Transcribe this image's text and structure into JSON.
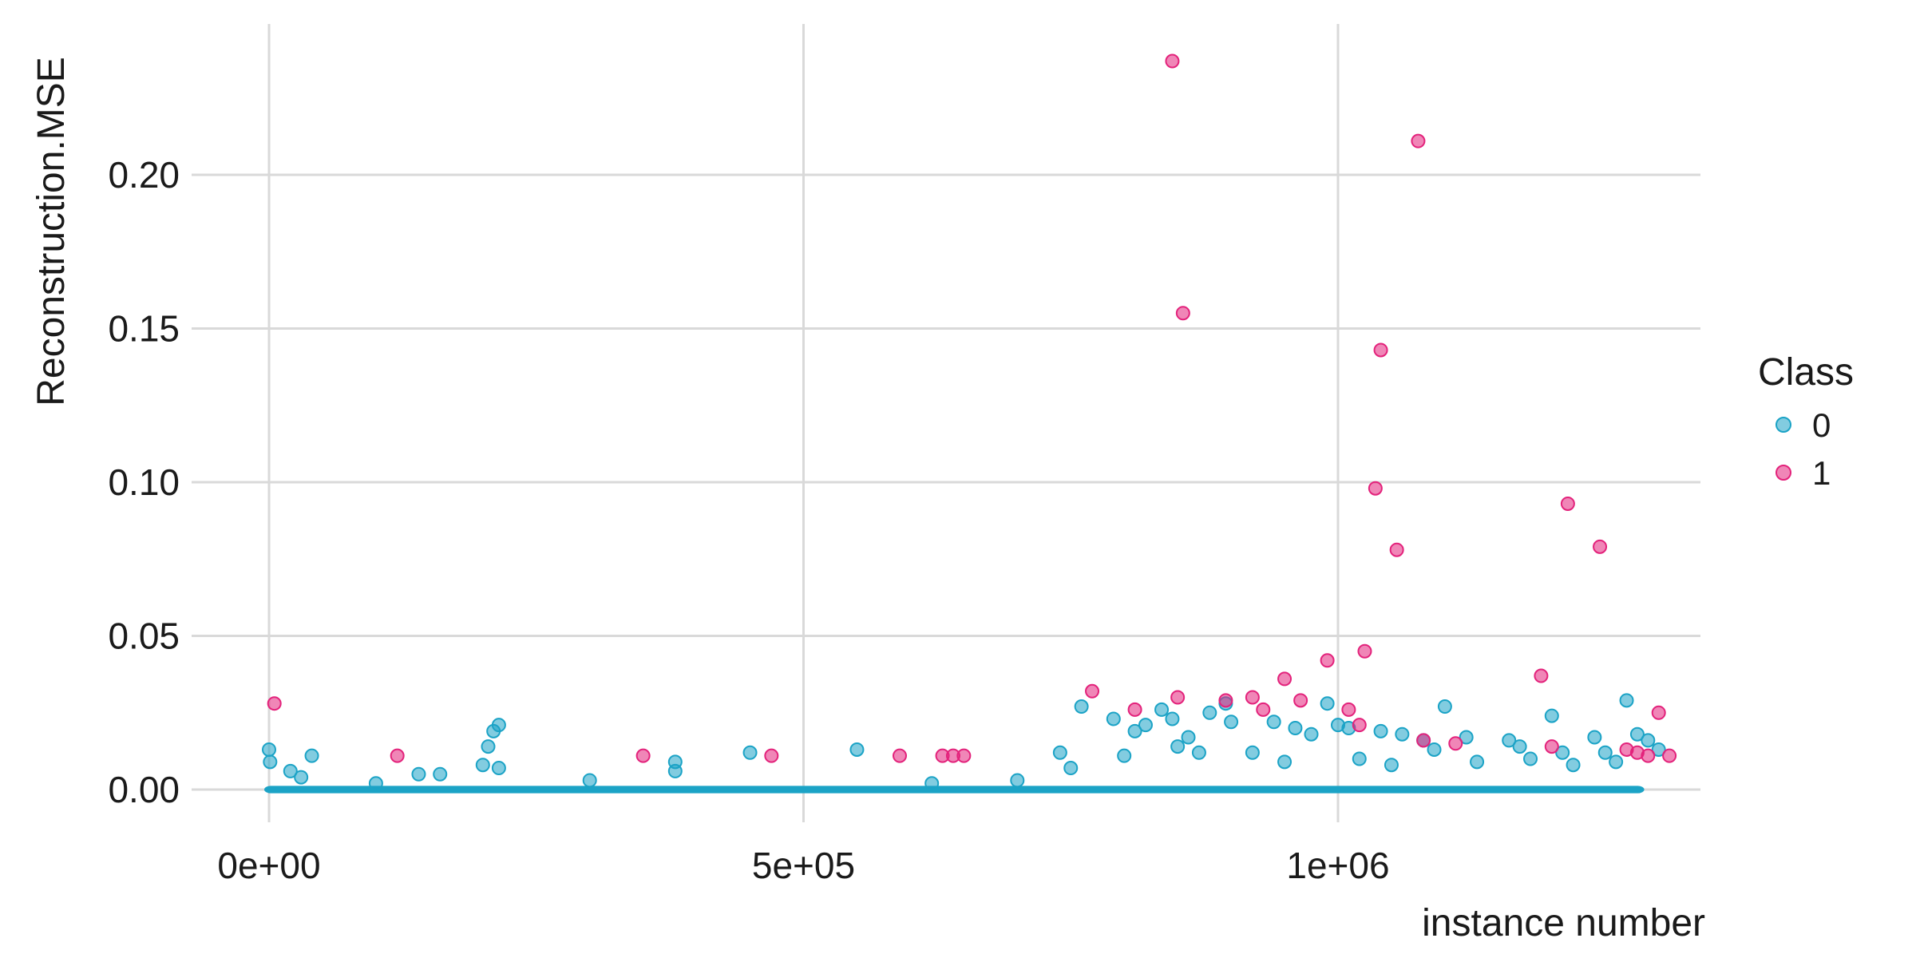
{
  "chart_data": {
    "type": "scatter",
    "xlabel": "instance number",
    "ylabel": "Reconstruction.MSE",
    "xlim": [
      -140000,
      1340000
    ],
    "ylim": [
      -0.012,
      0.25
    ],
    "x_ticks": [
      0,
      500000,
      1000000
    ],
    "x_tick_labels": [
      "0e+00",
      "5e+05",
      "1e+06"
    ],
    "y_ticks": [
      0,
      0.05,
      0.1,
      0.15,
      0.2
    ],
    "y_tick_labels": [
      "0.00",
      "0.05",
      "0.10",
      "0.15",
      "0.20"
    ],
    "grid": true,
    "legend": {
      "title": "Class",
      "position": "right"
    },
    "series": [
      {
        "name": "0",
        "color": "#1ba3c6",
        "points": [
          [
            0,
            0.013
          ],
          [
            1000,
            0.009
          ],
          [
            20000,
            0.006
          ],
          [
            40000,
            0.011
          ],
          [
            140000,
            0.005
          ],
          [
            160000,
            0.005
          ],
          [
            200000,
            0.008
          ],
          [
            205000,
            0.014
          ],
          [
            210000,
            0.019
          ],
          [
            215000,
            0.021
          ],
          [
            215000,
            0.007
          ],
          [
            380000,
            0.009
          ],
          [
            380000,
            0.006
          ],
          [
            450000,
            0.012
          ],
          [
            550000,
            0.013
          ],
          [
            760000,
            0.027
          ],
          [
            790000,
            0.023
          ],
          [
            810000,
            0.019
          ],
          [
            820000,
            0.021
          ],
          [
            835000,
            0.026
          ],
          [
            845000,
            0.023
          ],
          [
            860000,
            0.017
          ],
          [
            880000,
            0.025
          ],
          [
            895000,
            0.028
          ],
          [
            900000,
            0.022
          ],
          [
            940000,
            0.022
          ],
          [
            960000,
            0.02
          ],
          [
            975000,
            0.018
          ],
          [
            990000,
            0.028
          ],
          [
            1000000,
            0.021
          ],
          [
            1010000,
            0.02
          ],
          [
            1040000,
            0.019
          ],
          [
            1060000,
            0.018
          ],
          [
            1080000,
            0.016
          ],
          [
            1100000,
            0.027
          ],
          [
            1120000,
            0.017
          ],
          [
            1160000,
            0.016
          ],
          [
            1170000,
            0.014
          ],
          [
            1200000,
            0.024
          ],
          [
            1210000,
            0.012
          ],
          [
            1240000,
            0.017
          ],
          [
            1270000,
            0.029
          ],
          [
            1280000,
            0.018
          ],
          [
            1290000,
            0.016
          ],
          [
            1300000,
            0.013
          ],
          [
            740000,
            0.012
          ],
          [
            750000,
            0.007
          ],
          [
            800000,
            0.011
          ],
          [
            850000,
            0.014
          ],
          [
            870000,
            0.012
          ],
          [
            920000,
            0.012
          ],
          [
            950000,
            0.009
          ],
          [
            1020000,
            0.01
          ],
          [
            1050000,
            0.008
          ],
          [
            1090000,
            0.013
          ],
          [
            1130000,
            0.009
          ],
          [
            1180000,
            0.01
          ],
          [
            1220000,
            0.008
          ],
          [
            1250000,
            0.012
          ],
          [
            1260000,
            0.009
          ],
          [
            300000,
            0.003
          ],
          [
            620000,
            0.002
          ],
          [
            700000,
            0.003
          ],
          [
            100000,
            0.002
          ],
          [
            30000,
            0.004
          ]
        ]
      },
      {
        "name": "1",
        "color": "#e3227b",
        "points": [
          [
            5000,
            0.028
          ],
          [
            120000,
            0.011
          ],
          [
            350000,
            0.011
          ],
          [
            470000,
            0.011
          ],
          [
            590000,
            0.011
          ],
          [
            630000,
            0.011
          ],
          [
            640000,
            0.011
          ],
          [
            650000,
            0.011
          ],
          [
            770000,
            0.032
          ],
          [
            810000,
            0.026
          ],
          [
            845000,
            0.237
          ],
          [
            850000,
            0.03
          ],
          [
            855000,
            0.155
          ],
          [
            895000,
            0.029
          ],
          [
            920000,
            0.03
          ],
          [
            930000,
            0.026
          ],
          [
            950000,
            0.036
          ],
          [
            965000,
            0.029
          ],
          [
            990000,
            0.042
          ],
          [
            1010000,
            0.026
          ],
          [
            1020000,
            0.021
          ],
          [
            1025000,
            0.045
          ],
          [
            1035000,
            0.098
          ],
          [
            1040000,
            0.143
          ],
          [
            1055000,
            0.078
          ],
          [
            1075000,
            0.211
          ],
          [
            1080000,
            0.016
          ],
          [
            1110000,
            0.015
          ],
          [
            1190000,
            0.037
          ],
          [
            1200000,
            0.014
          ],
          [
            1215000,
            0.093
          ],
          [
            1245000,
            0.079
          ],
          [
            1270000,
            0.013
          ],
          [
            1280000,
            0.012
          ],
          [
            1290000,
            0.011
          ],
          [
            1300000,
            0.025
          ],
          [
            1310000,
            0.011
          ]
        ]
      }
    ]
  }
}
